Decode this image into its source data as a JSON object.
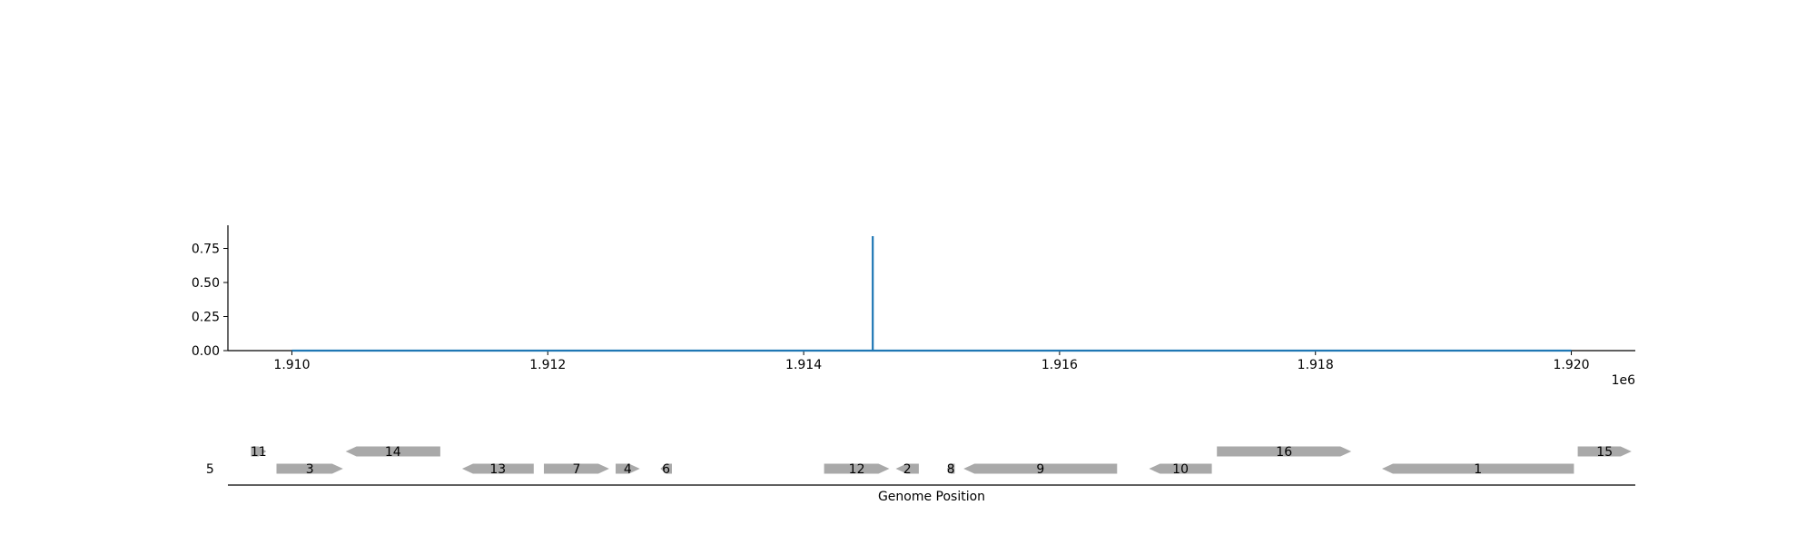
{
  "chart_data": [
    {
      "type": "line",
      "x": [
        1910000,
        1914540,
        1914540,
        1914540,
        1914540,
        1920000
      ],
      "y": [
        0.0,
        0.0,
        0.84,
        0.84,
        0.0,
        0.0
      ],
      "xlim": [
        1909500,
        1920500
      ],
      "ylim": [
        0,
        0.92
      ],
      "x_ticks": [
        1910000,
        1912000,
        1914000,
        1916000,
        1918000,
        1920000
      ],
      "x_tick_labels": [
        "1.910",
        "1.912",
        "1.914",
        "1.916",
        "1.918",
        "1.920"
      ],
      "x_offset_label": "1e6",
      "y_ticks": [
        0.0,
        0.25,
        0.5,
        0.75
      ],
      "y_tick_labels": [
        "0.00",
        "0.25",
        "0.50",
        "0.75"
      ],
      "line_color": "#1f77b4",
      "grid": false
    },
    {
      "type": "gene_track",
      "xlabel": "Genome Position",
      "xlim": [
        1909500,
        1920500
      ],
      "feature_color": "#a9a9a9",
      "features": [
        {
          "label": "5",
          "start": 1909300,
          "end": 1909420,
          "strand": "+",
          "row": 0
        },
        {
          "label": "11",
          "start": 1909680,
          "end": 1909800,
          "strand": "+",
          "row": 1
        },
        {
          "label": "3",
          "start": 1909880,
          "end": 1910400,
          "strand": "+",
          "row": 0
        },
        {
          "label": "14",
          "start": 1910420,
          "end": 1911160,
          "strand": "-",
          "row": 1
        },
        {
          "label": "13",
          "start": 1911330,
          "end": 1911890,
          "strand": "-",
          "row": 0
        },
        {
          "label": "7",
          "start": 1911970,
          "end": 1912480,
          "strand": "+",
          "row": 0
        },
        {
          "label": "4",
          "start": 1912530,
          "end": 1912720,
          "strand": "+",
          "row": 0
        },
        {
          "label": "6",
          "start": 1912880,
          "end": 1912970,
          "strand": "-",
          "row": 0
        },
        {
          "label": "12",
          "start": 1914160,
          "end": 1914670,
          "strand": "+",
          "row": 0
        },
        {
          "label": "2",
          "start": 1914720,
          "end": 1914900,
          "strand": "-",
          "row": 0
        },
        {
          "label": "8",
          "start": 1915120,
          "end": 1915180,
          "strand": "-",
          "row": 0
        },
        {
          "label": "9",
          "start": 1915250,
          "end": 1916450,
          "strand": "-",
          "row": 0
        },
        {
          "label": "10",
          "start": 1916700,
          "end": 1917190,
          "strand": "-",
          "row": 0
        },
        {
          "label": "16",
          "start": 1917230,
          "end": 1918280,
          "strand": "+",
          "row": 1
        },
        {
          "label": "1",
          "start": 1918520,
          "end": 1920020,
          "strand": "-",
          "row": 0
        },
        {
          "label": "15",
          "start": 1920050,
          "end": 1920470,
          "strand": "+",
          "row": 1
        }
      ]
    }
  ]
}
